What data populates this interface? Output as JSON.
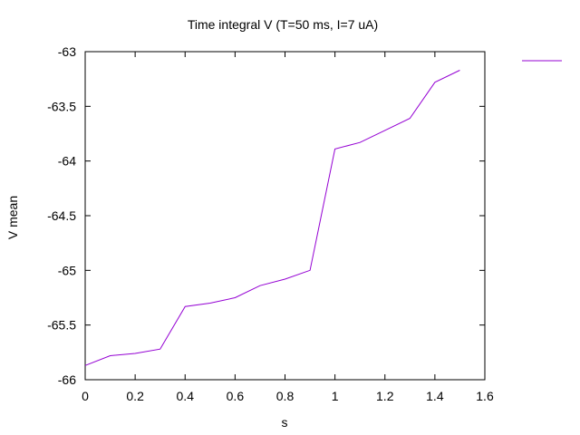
{
  "chart_data": {
    "type": "line",
    "title": "Time integral V (T=50 ms, I=7 uA)",
    "xlabel": "s",
    "ylabel": "V mean",
    "xlim": [
      0,
      1.6
    ],
    "ylim": [
      -66,
      -63
    ],
    "xticks": [
      "0",
      "0.2",
      "0.4",
      "0.6",
      "0.8",
      "1",
      "1.2",
      "1.4",
      "1.6"
    ],
    "yticks": [
      "-63",
      "-63.5",
      "-64",
      "-64.5",
      "-65",
      "-65.5",
      "-66"
    ],
    "grid": false,
    "legend_position": "top-right",
    "series": [
      {
        "color": "#9400d3",
        "x": [
          0,
          0.1,
          0.2,
          0.3,
          0.4,
          0.5,
          0.6,
          0.7,
          0.8,
          0.9,
          1.0,
          1.1,
          1.2,
          1.3,
          1.4,
          1.5
        ],
        "y": [
          -65.87,
          -65.78,
          -65.76,
          -65.72,
          -65.33,
          -65.3,
          -65.25,
          -65.14,
          -65.08,
          -65.0,
          -63.89,
          -63.83,
          -63.72,
          -63.61,
          -63.28,
          -63.17
        ]
      }
    ]
  }
}
